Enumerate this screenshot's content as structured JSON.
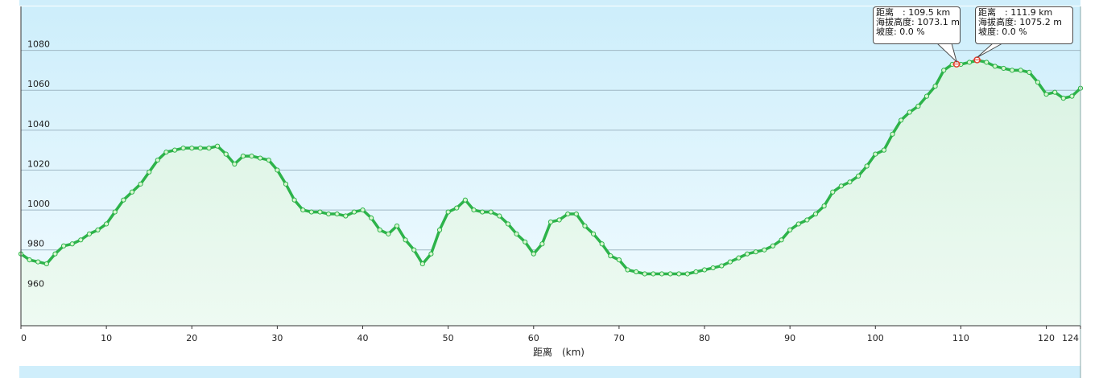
{
  "chart_data": {
    "type": "area",
    "xlabel": "距离　(km)",
    "ylabel": "",
    "xlim": [
      0,
      124
    ],
    "ylim": [
      942,
      1102
    ],
    "x_ticks": [
      0,
      10,
      20,
      30,
      40,
      50,
      60,
      70,
      80,
      90,
      100,
      110,
      120,
      124
    ],
    "y_ticks": [
      960,
      980,
      1000,
      1020,
      1040,
      1060,
      1080
    ],
    "grid": true,
    "legend": "none",
    "colors": {
      "line": "#2db34a",
      "marker_fill": "#d9f7d0",
      "plot_bg_top": "#cfeefb",
      "plot_bg_bottom": "#eef9ff",
      "area_fill": "#e4f7ea",
      "gridline": "#9fb7c4",
      "marker_highlight": "#e53b2c"
    },
    "series": [
      {
        "x": [
          0,
          1,
          2,
          3,
          4,
          5,
          6,
          7,
          8,
          9,
          10,
          11,
          12,
          13,
          14,
          15,
          16,
          17,
          18,
          19,
          20,
          21,
          22,
          23,
          24,
          25,
          26,
          27,
          28,
          29,
          30,
          31,
          32,
          33,
          34,
          35,
          36,
          37,
          38,
          39,
          40,
          41,
          42,
          43,
          44,
          45,
          46,
          47,
          48,
          49,
          50,
          51,
          52,
          53,
          54,
          55,
          56,
          57,
          58,
          59,
          60,
          61,
          62,
          63,
          64,
          65,
          66,
          67,
          68,
          69,
          70,
          71,
          72,
          73,
          74,
          75,
          76,
          77,
          78,
          79,
          80,
          81,
          82,
          83,
          84,
          85,
          86,
          87,
          88,
          89,
          90,
          91,
          92,
          93,
          94,
          95,
          96,
          97,
          98,
          99,
          100,
          101,
          102,
          103,
          104,
          105,
          106,
          107,
          108,
          109,
          110,
          111,
          112,
          113,
          114,
          115,
          116,
          117,
          118,
          119,
          120,
          121,
          122,
          123,
          124
        ],
        "y": [
          978,
          975,
          974,
          973,
          978,
          982,
          983,
          985,
          988,
          990,
          993,
          999,
          1005,
          1009,
          1013,
          1019,
          1025,
          1029,
          1030,
          1031,
          1031,
          1031,
          1031,
          1032,
          1028,
          1023,
          1027,
          1027,
          1026,
          1025,
          1020,
          1013,
          1005,
          1000,
          999,
          999,
          998,
          998,
          997,
          999,
          1000,
          996,
          990,
          988,
          992,
          985,
          980,
          973,
          978,
          990,
          999,
          1001,
          1005,
          1000,
          999,
          999,
          997,
          993,
          988,
          984,
          978,
          983,
          994,
          995,
          998,
          998,
          992,
          988,
          983,
          977,
          975,
          970,
          969,
          968,
          968,
          968,
          968,
          968,
          968,
          969,
          970,
          971,
          972,
          974,
          976,
          978,
          979,
          980,
          982,
          985,
          990,
          993,
          995,
          998,
          1002,
          1009,
          1012,
          1014,
          1017,
          1022,
          1028,
          1030,
          1038,
          1045,
          1049,
          1052,
          1057,
          1062,
          1070,
          1073,
          1073,
          1074,
          1075,
          1074,
          1072,
          1071,
          1070,
          1070,
          1069,
          1064,
          1058,
          1059,
          1056,
          1057,
          1061
        ]
      }
    ],
    "tooltips": [
      {
        "lines": [
          "距离　: 109.5 km",
          "海拔高度: 1073.1 m",
          "坡度: 0.0 %"
        ],
        "x": 109.5,
        "y": 1073.1
      },
      {
        "lines": [
          "距离　: 111.9 km",
          "海拔高度: 1075.2 m",
          "坡度: 0.0 %"
        ],
        "x": 111.9,
        "y": 1075.2
      }
    ]
  }
}
